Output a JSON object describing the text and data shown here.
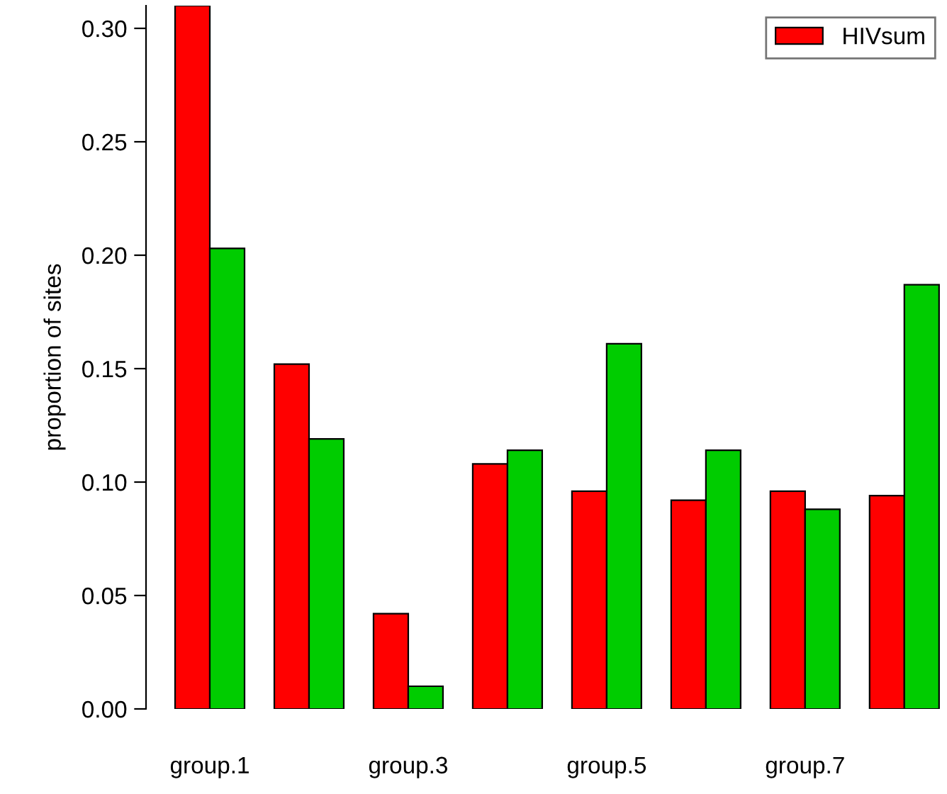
{
  "chart_data": {
    "type": "bar",
    "ylabel": "proportion of sites",
    "categories": [
      "group.1",
      null,
      "group.3",
      null,
      "group.5",
      null,
      "group.7",
      null
    ],
    "series": [
      {
        "name": "HIVsum",
        "color": "#ff0000",
        "values": [
          0.31,
          0.152,
          0.042,
          0.108,
          0.096,
          0.092,
          0.096,
          0.094
        ]
      },
      {
        "color": "#00cc00",
        "values": [
          0.203,
          0.119,
          0.01,
          0.114,
          0.161,
          0.114,
          0.088,
          0.187
        ]
      }
    ],
    "ylim": [
      0,
      0.31
    ],
    "yticks": [
      {
        "value": 0,
        "label": "0.00"
      },
      {
        "value": 0.05,
        "label": "0.05"
      },
      {
        "value": 0.1,
        "label": "0.10"
      },
      {
        "value": 0.15,
        "label": "0.15"
      },
      {
        "value": 0.2,
        "label": "0.20"
      },
      {
        "value": 0.25,
        "label": "0.25"
      },
      {
        "value": 0.3,
        "label": "0.30"
      }
    ],
    "grid": false,
    "legend": "top right"
  }
}
